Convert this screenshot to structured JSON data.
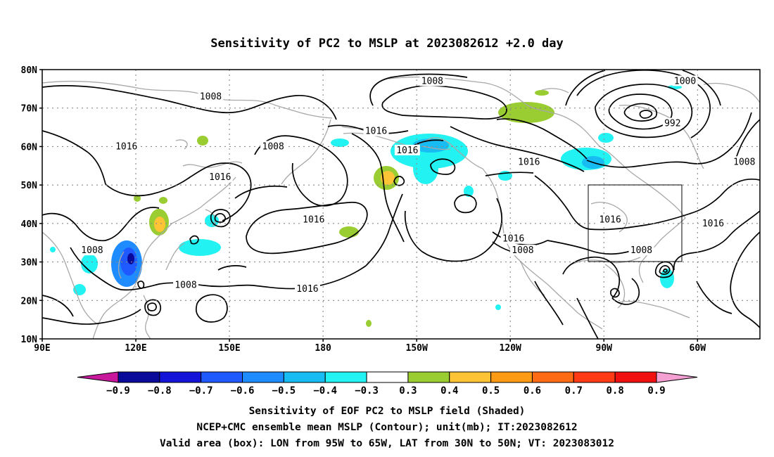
{
  "title": "Sensitivity of PC2 to MSLP at 2023082612 +2.0 day",
  "map": {
    "lat_labels": [
      "80N",
      "70N",
      "60N",
      "50N",
      "40N",
      "30N",
      "20N",
      "10N"
    ],
    "lon_labels": [
      "90E",
      "120E",
      "150E",
      "180",
      "150W",
      "120W",
      "90W",
      "60W"
    ],
    "extent": {
      "lon_min_east": 90,
      "lon_max_east": 320,
      "lat_min": 10,
      "lat_max": 80
    },
    "gridlines": "dotted",
    "valid_box": {
      "lon_min": "95W",
      "lon_max": "65W",
      "lat_min": "30N",
      "lat_max": "50N"
    }
  },
  "contour_labels": [
    {
      "text": "1008",
      "lon": 144,
      "lat": 73
    },
    {
      "text": "1008",
      "lon": 215,
      "lat": 77
    },
    {
      "text": "1000",
      "lon": 296,
      "lat": 77
    },
    {
      "text": "992",
      "lon": 292,
      "lat": 66
    },
    {
      "text": "1016",
      "lon": 197,
      "lat": 64
    },
    {
      "text": "1016",
      "lon": 117,
      "lat": 60
    },
    {
      "text": "1008",
      "lon": 164,
      "lat": 60
    },
    {
      "text": "1016",
      "lon": 207,
      "lat": 59
    },
    {
      "text": "1016",
      "lon": 246,
      "lat": 56
    },
    {
      "text": "1008",
      "lon": 315,
      "lat": 56
    },
    {
      "text": "1016",
      "lon": 147,
      "lat": 52
    },
    {
      "text": "1016",
      "lon": 177,
      "lat": 41
    },
    {
      "text": "1016",
      "lon": 272,
      "lat": 41
    },
    {
      "text": "1016",
      "lon": 305,
      "lat": 40
    },
    {
      "text": "1008",
      "lon": 106,
      "lat": 33
    },
    {
      "text": "1016",
      "lon": 241,
      "lat": 36
    },
    {
      "text": "1008",
      "lon": 244,
      "lat": 33
    },
    {
      "text": "1008",
      "lon": 282,
      "lat": 33
    },
    {
      "text": "1008",
      "lon": 136,
      "lat": 24
    },
    {
      "text": "1016",
      "lon": 175,
      "lat": 23
    }
  ],
  "colorbar": {
    "labels": [
      "−0.9",
      "−0.8",
      "−0.7",
      "−0.6",
      "−0.5",
      "−0.4",
      "−0.3",
      "0.3",
      "0.4",
      "0.5",
      "0.6",
      "0.7",
      "0.8",
      "0.9"
    ],
    "colors": [
      "#0a0a9a",
      "#1414d8",
      "#1e5aff",
      "#1e8cff",
      "#16bcf2",
      "#22f2f2",
      "#ffffff",
      "#9acd32",
      "#ffc436",
      "#ff9a14",
      "#ff6a14",
      "#ff3a14",
      "#f01010"
    ],
    "low_arrow_color": "#c8189c",
    "high_arrow_color": "#f5a0d2"
  },
  "caption": {
    "line1": "Sensitivity of EOF PC2 to MSLP field (Shaded)",
    "line2": "NCEP+CMC ensemble mean MSLP (Contour); unit(mb); IT:2023082612",
    "line3": "Valid area (box): LON from 95W to 65W, LAT from 30N to 50N; VT: 2023083012"
  }
}
